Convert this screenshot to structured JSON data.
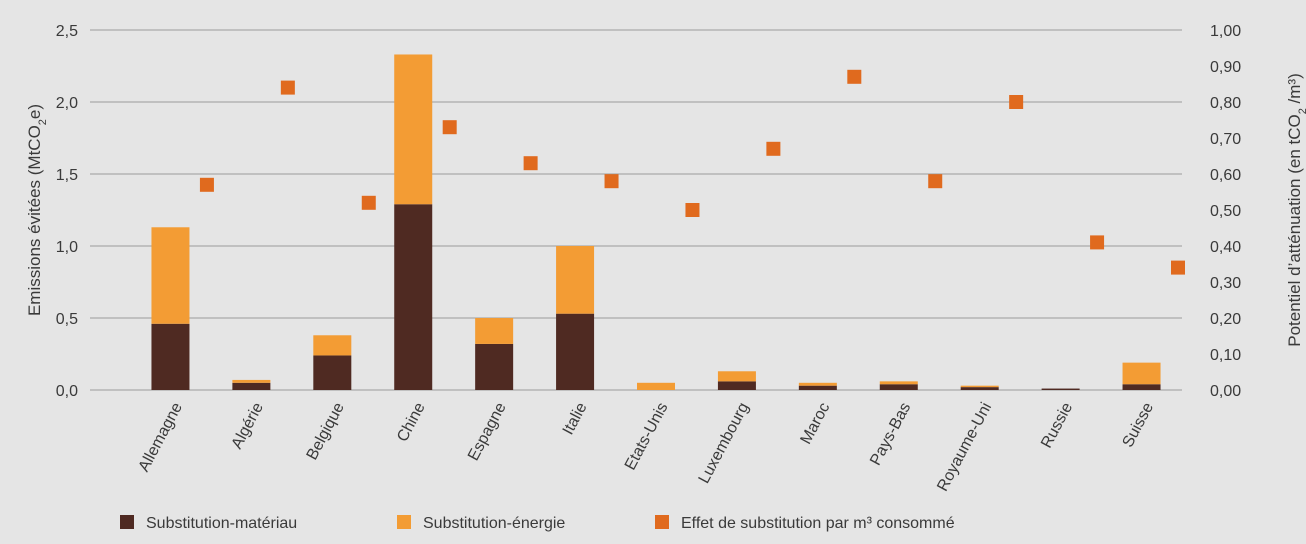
{
  "chart_data": {
    "type": "bar",
    "stacked": true,
    "categories": [
      "Allemagne",
      "Algérie",
      "Belgique",
      "Chine",
      "Espagne",
      "Italie",
      "Etats-Unis",
      "Luxembourg",
      "Maroc",
      "Pays-Bas",
      "Royaume-Uni",
      "Russie",
      "Suisse"
    ],
    "series": [
      {
        "name": "Substitution-matériau",
        "axis": "left",
        "color": "#4f2a22",
        "values": [
          0.46,
          0.05,
          0.24,
          1.29,
          0.32,
          0.53,
          0.0,
          0.06,
          0.03,
          0.04,
          0.02,
          0.01,
          0.04
        ]
      },
      {
        "name": "Substitution-énergie",
        "axis": "left",
        "color": "#f39c34",
        "values": [
          0.67,
          0.02,
          0.14,
          1.04,
          0.18,
          0.47,
          0.05,
          0.07,
          0.02,
          0.02,
          0.01,
          0.0,
          0.15
        ]
      },
      {
        "name": "Effet de substitution par m³ consommé",
        "axis": "right",
        "type": "scatter",
        "color": "#e06a1e",
        "values": [
          0.57,
          0.84,
          0.52,
          0.73,
          0.63,
          0.58,
          0.5,
          0.67,
          0.87,
          0.58,
          0.8,
          0.41,
          0.34
        ]
      }
    ],
    "y_left": {
      "label_prefix": "Emissions évitées (MtCO",
      "label_sub": "2",
      "label_suffix": "e)",
      "ylim": [
        0,
        2.5
      ],
      "ticks": [
        "0,0",
        "0,5",
        "1,0",
        "1,5",
        "2,0",
        "2,5"
      ]
    },
    "y_right": {
      "label_prefix": "Potentiel d’atténuation (en tCO",
      "label_sub": "2",
      "label_suffix": " /m³)",
      "ylim": [
        0,
        1.0
      ],
      "ticks": [
        "0,00",
        "0,10",
        "0,20",
        "0,30",
        "0,40",
        "0,50",
        "0,60",
        "0,70",
        "0,80",
        "0,90",
        "1,00"
      ]
    },
    "grid": true,
    "legend_position": "bottom-left"
  }
}
